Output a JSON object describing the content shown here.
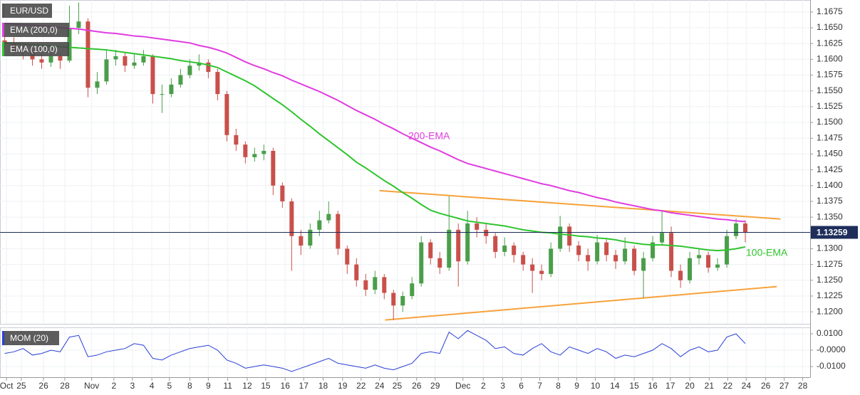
{
  "chart_data": [
    {
      "type": "candlestick",
      "xlim": [
        -0.5,
        87
      ],
      "xticks": [
        {
          "value": 0.2,
          "label": "Oct"
        },
        {
          "value": 1.8,
          "label": "25"
        },
        {
          "value": 4.2,
          "label": "26"
        },
        {
          "value": 6.5,
          "label": "28"
        },
        {
          "value": 9.4,
          "label": "Nov"
        },
        {
          "value": 11.8,
          "label": "2"
        },
        {
          "value": 13.8,
          "label": "3"
        },
        {
          "value": 15.9,
          "label": "4"
        },
        {
          "value": 17.8,
          "label": "5"
        },
        {
          "value": 20,
          "label": "8"
        },
        {
          "value": 22,
          "label": "9"
        },
        {
          "value": 24.1,
          "label": "11"
        },
        {
          "value": 26.2,
          "label": "12"
        },
        {
          "value": 28.2,
          "label": "15"
        },
        {
          "value": 30.3,
          "label": "16"
        },
        {
          "value": 32.3,
          "label": "17"
        },
        {
          "value": 34.4,
          "label": "18"
        },
        {
          "value": 36.5,
          "label": "19"
        },
        {
          "value": 38.5,
          "label": "22"
        },
        {
          "value": 40.5,
          "label": "24"
        },
        {
          "value": 42.4,
          "label": "25"
        },
        {
          "value": 44.5,
          "label": "26"
        },
        {
          "value": 46.5,
          "label": "29"
        },
        {
          "value": 49.5,
          "label": "Dec"
        },
        {
          "value": 51.7,
          "label": "2"
        },
        {
          "value": 53.8,
          "label": "3"
        },
        {
          "value": 55.8,
          "label": "6"
        },
        {
          "value": 57.8,
          "label": "7"
        },
        {
          "value": 59.8,
          "label": "8"
        },
        {
          "value": 61.8,
          "label": "9"
        },
        {
          "value": 63.8,
          "label": "10"
        },
        {
          "value": 65.9,
          "label": "14"
        },
        {
          "value": 68,
          "label": "15"
        },
        {
          "value": 70,
          "label": "16"
        },
        {
          "value": 71.9,
          "label": "17"
        },
        {
          "value": 74,
          "label": "20"
        },
        {
          "value": 76.1,
          "label": "21"
        },
        {
          "value": 78.1,
          "label": "22"
        },
        {
          "value": 80.1,
          "label": "24"
        },
        {
          "value": 82.2,
          "label": "26"
        },
        {
          "value": 84.2,
          "label": "27"
        },
        {
          "value": 86.2,
          "label": "28"
        }
      ],
      "ylim": [
        1.1181,
        1.1694
      ],
      "yticks": [
        {
          "value": 1.12,
          "label": "1.1200"
        },
        1.1225,
        {
          "value": 1.125,
          "label": "1.1250"
        },
        1.1275,
        {
          "value": 1.13,
          "label": "1.1300"
        },
        1.1325,
        {
          "value": 1.135,
          "label": "1.1350"
        },
        1.1375,
        {
          "value": 1.14,
          "label": "1.1400"
        },
        1.1425,
        {
          "value": 1.145,
          "label": "1.1450"
        },
        1.1475,
        {
          "value": 1.15,
          "label": "1.1500"
        },
        1.1525,
        {
          "value": 1.155,
          "label": "1.1550"
        },
        1.1575,
        {
          "value": 1.16,
          "label": "1.1600"
        },
        1.1625,
        {
          "value": 1.165,
          "label": "1.1650"
        },
        1.1675
      ],
      "grid": true,
      "up_color": "#4a9e4a",
      "down_color": "#c9504a",
      "series": [
        {
          "name": "EUR/USD",
          "open": [
            1.163,
            1.1625,
            1.1615,
            1.1612,
            1.16,
            1.1595,
            1.1605,
            1.1598,
            1.165,
            1.166,
            1.1555,
            1.1565,
            1.16,
            1.1605,
            1.159,
            1.1595,
            1.1605,
            1.1545,
            1.1545,
            1.156,
            1.1575,
            1.159,
            1.1595,
            1.158,
            1.1545,
            1.148,
            1.1465,
            1.1445,
            1.145,
            1.1455,
            1.14,
            1.1375,
            1.132,
            1.1305,
            1.133,
            1.1345,
            1.1355,
            1.13,
            1.1275,
            1.125,
            1.1235,
            1.1255,
            1.123,
            1.121,
            1.1225,
            1.1245,
            1.131,
            1.1285,
            1.127,
            1.133,
            1.128,
            1.134,
            1.133,
            1.132,
            1.1295,
            1.1305,
            1.129,
            1.1275,
            1.1265,
            1.126,
            1.13,
            1.1335,
            1.1305,
            1.129,
            1.128,
            1.131,
            1.129,
            1.128,
            1.13,
            1.1265,
            1.1285,
            1.131,
            1.1325,
            1.1265,
            1.125,
            1.1285,
            1.129,
            1.127,
            1.1275,
            1.132,
            1.134
          ],
          "high": [
            1.164,
            1.1635,
            1.1625,
            1.162,
            1.161,
            1.1615,
            1.1612,
            1.1685,
            1.169,
            1.1665,
            1.158,
            1.1615,
            1.1615,
            1.1612,
            1.161,
            1.1615,
            1.1608,
            1.156,
            1.157,
            1.1585,
            1.16,
            1.1608,
            1.16,
            1.1585,
            1.155,
            1.149,
            1.147,
            1.146,
            1.1465,
            1.146,
            1.1405,
            1.138,
            1.133,
            1.134,
            1.136,
            1.1375,
            1.136,
            1.1305,
            1.1285,
            1.126,
            1.1265,
            1.126,
            1.1235,
            1.1232,
            1.1255,
            1.132,
            1.1315,
            1.1295,
            1.1383,
            1.134,
            1.136,
            1.135,
            1.134,
            1.1325,
            1.1318,
            1.131,
            1.1295,
            1.1285,
            1.1275,
            1.131,
            1.1352,
            1.134,
            1.1312,
            1.13,
            1.1322,
            1.1315,
            1.1298,
            1.1318,
            1.1305,
            1.1295,
            1.132,
            1.136,
            1.1335,
            1.1275,
            1.1295,
            1.13,
            1.1295,
            1.1285,
            1.133,
            1.1348,
            1.1345
          ],
          "low": [
            1.1615,
            1.1605,
            1.16,
            1.159,
            1.1585,
            1.1588,
            1.1585,
            1.1595,
            1.164,
            1.154,
            1.1545,
            1.156,
            1.159,
            1.158,
            1.1585,
            1.159,
            1.153,
            1.1515,
            1.154,
            1.1555,
            1.157,
            1.1582,
            1.157,
            1.1535,
            1.147,
            1.1455,
            1.1435,
            1.1438,
            1.144,
            1.1385,
            1.1365,
            1.1265,
            1.129,
            1.13,
            1.132,
            1.134,
            1.129,
            1.126,
            1.124,
            1.1225,
            1.1228,
            1.122,
            1.1187,
            1.12,
            1.122,
            1.124,
            1.1275,
            1.126,
            1.1265,
            1.124,
            1.1275,
            1.1318,
            1.1308,
            1.1285,
            1.1288,
            1.1278,
            1.1265,
            1.123,
            1.125,
            1.1255,
            1.1295,
            1.1295,
            1.128,
            1.1265,
            1.1275,
            1.128,
            1.1268,
            1.1275,
            1.1258,
            1.1222,
            1.128,
            1.1305,
            1.1255,
            1.1238,
            1.1245,
            1.1275,
            1.1262,
            1.1265,
            1.127,
            1.1315,
            1.131
          ],
          "close": [
            1.1625,
            1.1615,
            1.1612,
            1.16,
            1.1595,
            1.1605,
            1.1598,
            1.165,
            1.166,
            1.1555,
            1.1565,
            1.16,
            1.1605,
            1.159,
            1.1595,
            1.1605,
            1.1545,
            1.1545,
            1.156,
            1.1575,
            1.159,
            1.1595,
            1.158,
            1.1545,
            1.148,
            1.1465,
            1.1445,
            1.145,
            1.1455,
            1.14,
            1.1375,
            1.132,
            1.1305,
            1.133,
            1.1345,
            1.1355,
            1.13,
            1.1275,
            1.125,
            1.1235,
            1.1255,
            1.123,
            1.121,
            1.1225,
            1.1245,
            1.131,
            1.1285,
            1.127,
            1.133,
            1.128,
            1.134,
            1.133,
            1.132,
            1.1295,
            1.1305,
            1.129,
            1.1275,
            1.1265,
            1.126,
            1.13,
            1.1335,
            1.1305,
            1.129,
            1.128,
            1.131,
            1.129,
            1.128,
            1.13,
            1.1265,
            1.1285,
            1.131,
            1.1325,
            1.1265,
            1.125,
            1.1285,
            1.129,
            1.127,
            1.1275,
            1.132,
            1.134,
            1.1326
          ]
        }
      ],
      "lines": [
        {
          "name": "EMA (200,0)",
          "color": "#e03de0",
          "values": [
            1.1657,
            1.1656,
            1.1655,
            1.1654,
            1.1653,
            1.1652,
            1.165,
            1.1649,
            1.1648,
            1.1646,
            1.1644,
            1.1642,
            1.1641,
            1.1639,
            1.1637,
            1.1636,
            1.1634,
            1.1632,
            1.163,
            1.1628,
            1.1626,
            1.1622,
            1.1619,
            1.1615,
            1.161,
            1.1603,
            1.1596,
            1.159,
            1.1585,
            1.1579,
            1.1574,
            1.1567,
            1.1561,
            1.1555,
            1.1549,
            1.1542,
            1.1535,
            1.1527,
            1.1519,
            1.1512,
            1.1505,
            1.1497,
            1.149,
            1.1482,
            1.1475,
            1.1468,
            1.1461,
            1.1455,
            1.1448,
            1.1441,
            1.1435,
            1.1431,
            1.1427,
            1.1423,
            1.1419,
            1.1415,
            1.1411,
            1.1407,
            1.1403,
            1.14,
            1.1396,
            1.1392,
            1.1389,
            1.1385,
            1.1381,
            1.1378,
            1.1374,
            1.1371,
            1.1368,
            1.1365,
            1.1362,
            1.136,
            1.1357,
            1.1355,
            1.1353,
            1.1351,
            1.1349,
            1.1347,
            1.1346,
            1.1344,
            1.1343
          ]
        },
        {
          "name": "EMA (100,0)",
          "color": "#2fc42f",
          "values": [
            1.1626,
            1.1625,
            1.1624,
            1.1623,
            1.1622,
            1.1621,
            1.162,
            1.1619,
            1.1618,
            1.1617,
            1.1616,
            1.1615,
            1.1613,
            1.1611,
            1.1609,
            1.1607,
            1.1605,
            1.1603,
            1.1601,
            1.1598,
            1.1596,
            1.1594,
            1.1591,
            1.1587,
            1.158,
            1.1573,
            1.1566,
            1.1558,
            1.1548,
            1.1538,
            1.1528,
            1.1517,
            1.1505,
            1.1494,
            1.1482,
            1.1471,
            1.146,
            1.1449,
            1.1437,
            1.1428,
            1.1418,
            1.1408,
            1.1399,
            1.1389,
            1.138,
            1.137,
            1.1361,
            1.1356,
            1.1352,
            1.1348,
            1.1344,
            1.1342,
            1.134,
            1.1338,
            1.1336,
            1.1333,
            1.133,
            1.1328,
            1.1326,
            1.1325,
            1.1323,
            1.1322,
            1.132,
            1.1319,
            1.1317,
            1.1316,
            1.1314,
            1.1311,
            1.1309,
            1.1307,
            1.1306,
            1.1306,
            1.1305,
            1.1304,
            1.1302,
            1.13,
            1.1298,
            1.1297,
            1.1298,
            1.13,
            1.1303
          ]
        }
      ],
      "trendlines": [
        {
          "color": "#f7a23a",
          "x": [
            40.5,
            83.8
          ],
          "values": [
            1.1392,
            1.1347
          ]
        },
        {
          "color": "#f7a23a",
          "x": [
            41.1,
            83.4
          ],
          "values": [
            1.1187,
            1.124
          ]
        }
      ],
      "last_price": 1.13259,
      "annotations": [
        "200-EMA",
        "100-EMA"
      ]
    },
    {
      "type": "line",
      "ylim": [
        -0.0165,
        0.0139
      ],
      "yticks": [
        {
          "value": -0.01,
          "label": "-0.0100"
        },
        {
          "value": 0,
          "label": "-0.0000"
        },
        {
          "value": 0.01,
          "label": "0.0100"
        }
      ],
      "series": [
        {
          "name": "MOM (20)",
          "color": "#2a3fd6",
          "values": [
            -0.002,
            -0.001,
            0.001,
            -0.003,
            -0.002,
            0.0,
            -0.001,
            0.008,
            0.009,
            -0.004,
            -0.003,
            -0.001,
            0.0,
            0.001,
            0.004,
            0.003,
            -0.005,
            -0.006,
            -0.003,
            -0.001,
            0.001,
            0.002,
            0.003,
            0.0,
            -0.006,
            -0.008,
            -0.011,
            -0.01,
            -0.009,
            -0.01,
            -0.011,
            -0.013,
            -0.011,
            -0.009,
            -0.007,
            -0.005,
            -0.008,
            -0.009,
            -0.01,
            -0.011,
            -0.009,
            -0.011,
            -0.012,
            -0.01,
            -0.008,
            -0.002,
            -0.001,
            -0.002,
            0.011,
            0.007,
            0.012,
            0.009,
            0.006,
            0.001,
            0.002,
            -0.002,
            -0.003,
            0.001,
            0.004,
            -0.001,
            -0.003,
            0.002,
            0.0,
            -0.002,
            0.001,
            -0.001,
            -0.005,
            -0.003,
            -0.004,
            -0.002,
            0.0,
            0.004,
            0.001,
            -0.004,
            0.0,
            0.002,
            -0.001,
            0.0,
            0.008,
            0.01,
            0.004
          ]
        }
      ]
    }
  ]
}
